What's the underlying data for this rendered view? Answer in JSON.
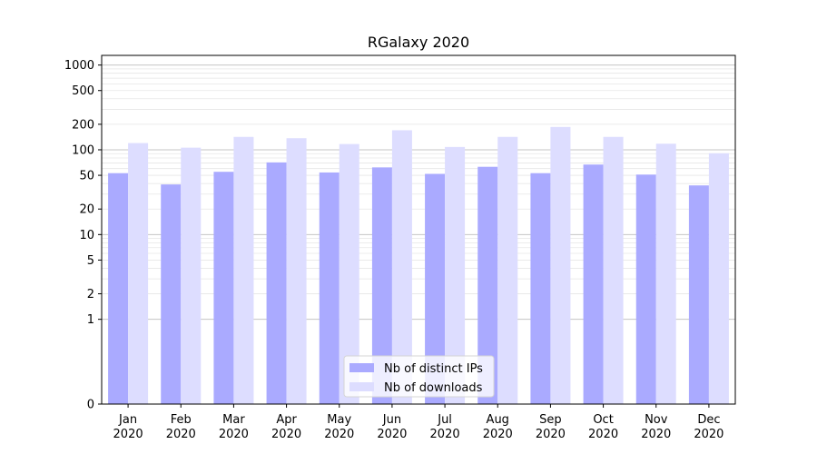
{
  "chart_data": {
    "type": "bar",
    "title": "RGalaxy 2020",
    "xlabel": "",
    "ylabel": "",
    "categories": [
      [
        "Jan",
        "2020"
      ],
      [
        "Feb",
        "2020"
      ],
      [
        "Mar",
        "2020"
      ],
      [
        "Apr",
        "2020"
      ],
      [
        "May",
        "2020"
      ],
      [
        "Jun",
        "2020"
      ],
      [
        "Jul",
        "2020"
      ],
      [
        "Aug",
        "2020"
      ],
      [
        "Sep",
        "2020"
      ],
      [
        "Oct",
        "2020"
      ],
      [
        "Nov",
        "2020"
      ],
      [
        "Dec",
        "2020"
      ]
    ],
    "y_scale": "symlog",
    "ylim": [
      0,
      1300
    ],
    "y_ticks": [
      0,
      1,
      2,
      5,
      10,
      20,
      50,
      100,
      200,
      500,
      1000
    ],
    "grid": true,
    "legend_position": "lower-center",
    "series": [
      {
        "name": "Nb of distinct IPs",
        "color": "#aaaaff",
        "values": [
          53,
          39,
          55,
          71,
          54,
          62,
          52,
          63,
          53,
          67,
          51,
          38
        ]
      },
      {
        "name": "Nb of downloads",
        "color": "#ddddff",
        "values": [
          120,
          106,
          142,
          137,
          117,
          170,
          108,
          142,
          186,
          142,
          118,
          91
        ]
      }
    ]
  }
}
